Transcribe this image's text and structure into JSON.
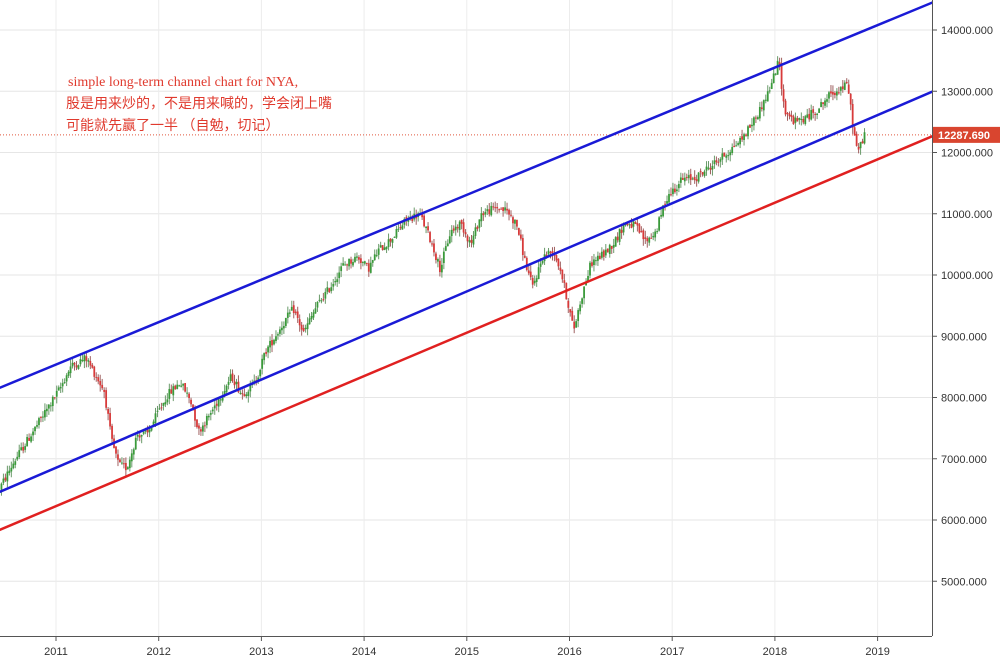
{
  "chart_data": {
    "type": "candlestick",
    "annotation": [
      "simple long-term channel chart for NYA,",
      "股是用来炒的，不是用来喊的，学会闭上嘴",
      "可能就先赢了一半 （自勉，切记）"
    ],
    "last_price": "12287.690",
    "y_ticks": [
      "5000.000",
      "6000.000",
      "7000.000",
      "8000.000",
      "9000.000",
      "10000.000",
      "11000.000",
      "12000.000",
      "13000.000",
      "14000.000"
    ],
    "x_ticks": [
      "2011",
      "2012",
      "2013",
      "2014",
      "2015",
      "2016",
      "2017",
      "2018",
      "2019"
    ],
    "channel_lines": [
      {
        "role": "upper",
        "color": "#1a1ad6",
        "from": {
          "x": 2010.44,
          "y": 8150
        },
        "to": {
          "x": 2019.68,
          "y": 14550
        }
      },
      {
        "role": "middle",
        "color": "#1a1ad6",
        "from": {
          "x": 2010.44,
          "y": 6450
        },
        "to": {
          "x": 2019.68,
          "y": 13100
        }
      },
      {
        "role": "lower",
        "color": "#e02020",
        "from": {
          "x": 2010.44,
          "y": 5830
        },
        "to": {
          "x": 2019.68,
          "y": 12370
        }
      }
    ],
    "price_path": [
      [
        2010.44,
        6450
      ],
      [
        2010.6,
        6950
      ],
      [
        2010.75,
        7350
      ],
      [
        2010.9,
        7750
      ],
      [
        2011.05,
        8150
      ],
      [
        2011.15,
        8500
      ],
      [
        2011.3,
        8650
      ],
      [
        2011.4,
        8350
      ],
      [
        2011.48,
        8100
      ],
      [
        2011.55,
        7300
      ],
      [
        2011.62,
        6900
      ],
      [
        2011.7,
        6850
      ],
      [
        2011.8,
        7400
      ],
      [
        2011.9,
        7400
      ],
      [
        2012.0,
        7750
      ],
      [
        2012.1,
        8050
      ],
      [
        2012.22,
        8250
      ],
      [
        2012.32,
        7950
      ],
      [
        2012.4,
        7450
      ],
      [
        2012.5,
        7700
      ],
      [
        2012.62,
        8050
      ],
      [
        2012.72,
        8350
      ],
      [
        2012.82,
        8050
      ],
      [
        2012.95,
        8250
      ],
      [
        2013.05,
        8750
      ],
      [
        2013.2,
        9150
      ],
      [
        2013.32,
        9450
      ],
      [
        2013.42,
        9050
      ],
      [
        2013.55,
        9500
      ],
      [
        2013.68,
        9800
      ],
      [
        2013.8,
        10150
      ],
      [
        2013.95,
        10300
      ],
      [
        2014.05,
        10100
      ],
      [
        2014.15,
        10400
      ],
      [
        2014.28,
        10600
      ],
      [
        2014.42,
        10900
      ],
      [
        2014.55,
        11000
      ],
      [
        2014.65,
        10600
      ],
      [
        2014.75,
        10100
      ],
      [
        2014.85,
        10700
      ],
      [
        2014.95,
        10850
      ],
      [
        2015.05,
        10500
      ],
      [
        2015.15,
        11000
      ],
      [
        2015.3,
        11100
      ],
      [
        2015.4,
        11050
      ],
      [
        2015.5,
        10800
      ],
      [
        2015.58,
        10200
      ],
      [
        2015.65,
        9800
      ],
      [
        2015.75,
        10300
      ],
      [
        2015.85,
        10400
      ],
      [
        2015.92,
        10100
      ],
      [
        2016.0,
        9500
      ],
      [
        2016.05,
        9100
      ],
      [
        2016.12,
        9600
      ],
      [
        2016.22,
        10200
      ],
      [
        2016.35,
        10350
      ],
      [
        2016.45,
        10550
      ],
      [
        2016.55,
        10850
      ],
      [
        2016.65,
        10800
      ],
      [
        2016.75,
        10550
      ],
      [
        2016.85,
        10700
      ],
      [
        2016.95,
        11250
      ],
      [
        2017.1,
        11550
      ],
      [
        2017.25,
        11600
      ],
      [
        2017.4,
        11800
      ],
      [
        2017.55,
        12000
      ],
      [
        2017.7,
        12250
      ],
      [
        2017.85,
        12650
      ],
      [
        2017.95,
        13000
      ],
      [
        2018.05,
        13500
      ],
      [
        2018.1,
        12700
      ],
      [
        2018.2,
        12500
      ],
      [
        2018.3,
        12550
      ],
      [
        2018.42,
        12700
      ],
      [
        2018.55,
        12950
      ],
      [
        2018.65,
        13050
      ],
      [
        2018.72,
        13100
      ],
      [
        2018.78,
        12300
      ],
      [
        2018.82,
        12000
      ],
      [
        2018.88,
        12300
      ]
    ]
  }
}
